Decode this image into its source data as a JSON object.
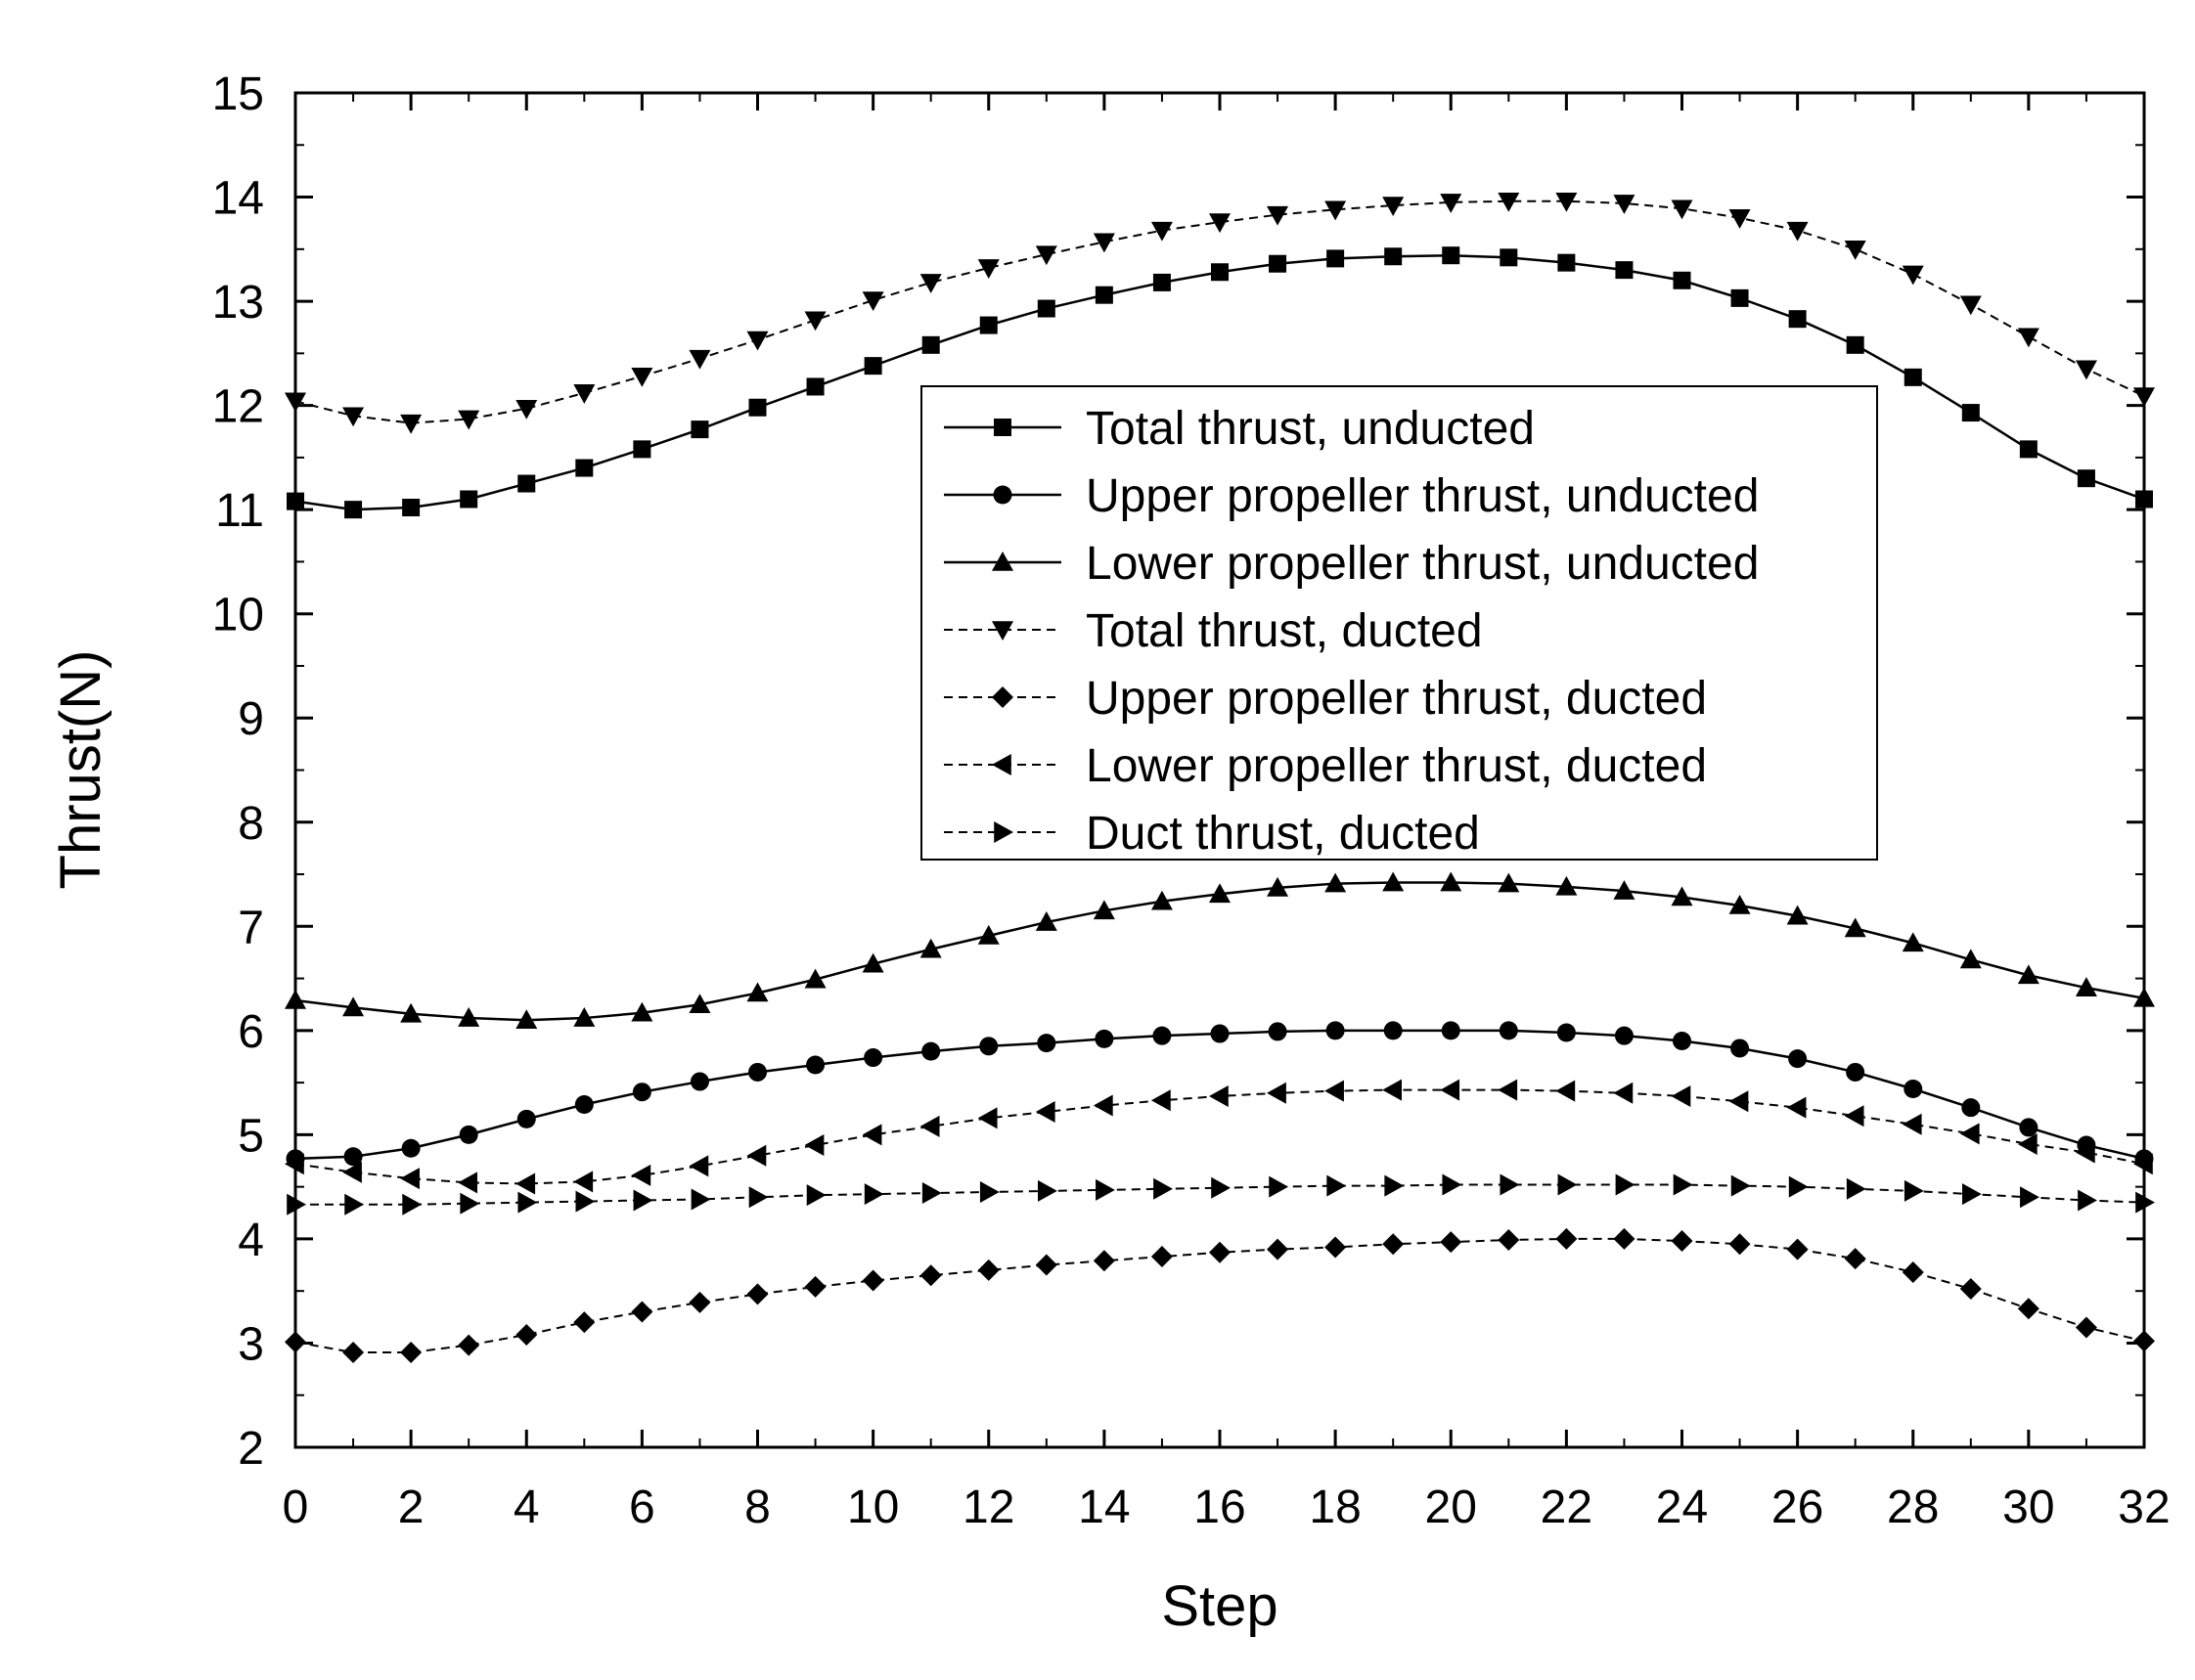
{
  "chart_data": {
    "type": "line",
    "title": "",
    "xlabel": "Step",
    "ylabel": "Thrust(N)",
    "xlim": [
      0,
      32
    ],
    "ylim": [
      2,
      15
    ],
    "xticks": [
      0,
      2,
      4,
      6,
      8,
      10,
      12,
      14,
      16,
      18,
      20,
      22,
      24,
      26,
      28,
      30,
      32
    ],
    "yticks": [
      2,
      3,
      4,
      5,
      6,
      7,
      8,
      9,
      10,
      11,
      12,
      13,
      14,
      15
    ],
    "grid": false,
    "legend_position": "top-right",
    "x": [
      0,
      1,
      2,
      3,
      4,
      5,
      6,
      7,
      8,
      9,
      10,
      11,
      12,
      13,
      14,
      15,
      16,
      17,
      18,
      19,
      20,
      21,
      22,
      23,
      24,
      25,
      26,
      27,
      28,
      29,
      30,
      31,
      32
    ],
    "series": [
      {
        "name": "Total thrust, unducted",
        "line": "solid",
        "marker": "square",
        "values": [
          11.08,
          11.0,
          11.02,
          11.1,
          11.25,
          11.4,
          11.58,
          11.77,
          11.98,
          12.18,
          12.38,
          12.58,
          12.77,
          12.93,
          13.06,
          13.18,
          13.28,
          13.36,
          13.41,
          13.43,
          13.44,
          13.42,
          13.37,
          13.3,
          13.2,
          13.03,
          12.83,
          12.58,
          12.27,
          11.93,
          11.58,
          11.3,
          11.1
        ]
      },
      {
        "name": "Upper propeller thrust, unducted",
        "line": "solid",
        "marker": "circle",
        "values": [
          4.77,
          4.79,
          4.87,
          5.0,
          5.15,
          5.29,
          5.41,
          5.51,
          5.6,
          5.67,
          5.74,
          5.8,
          5.85,
          5.88,
          5.92,
          5.95,
          5.97,
          5.99,
          6.0,
          6.0,
          6.0,
          6.0,
          5.98,
          5.95,
          5.9,
          5.83,
          5.73,
          5.6,
          5.44,
          5.26,
          5.07,
          4.9,
          4.77
        ]
      },
      {
        "name": "Lower propeller thrust, unducted",
        "line": "solid",
        "marker": "triangle-up",
        "values": [
          6.29,
          6.22,
          6.16,
          6.12,
          6.1,
          6.12,
          6.17,
          6.25,
          6.36,
          6.49,
          6.64,
          6.78,
          6.91,
          7.04,
          7.15,
          7.24,
          7.31,
          7.37,
          7.41,
          7.42,
          7.42,
          7.41,
          7.38,
          7.34,
          7.28,
          7.2,
          7.1,
          6.98,
          6.84,
          6.68,
          6.53,
          6.41,
          6.31
        ]
      },
      {
        "name": "Total thrust, ducted",
        "line": "dashed",
        "marker": "triangle-down",
        "values": [
          12.04,
          11.9,
          11.83,
          11.87,
          11.97,
          12.12,
          12.28,
          12.45,
          12.63,
          12.82,
          13.01,
          13.18,
          13.32,
          13.45,
          13.57,
          13.68,
          13.76,
          13.83,
          13.88,
          13.92,
          13.95,
          13.96,
          13.96,
          13.94,
          13.89,
          13.8,
          13.68,
          13.5,
          13.26,
          12.97,
          12.66,
          12.35,
          12.09
        ]
      },
      {
        "name": "Upper propeller thrust, ducted",
        "line": "dashed",
        "marker": "diamond",
        "values": [
          3.01,
          2.91,
          2.91,
          2.98,
          3.08,
          3.2,
          3.3,
          3.39,
          3.47,
          3.54,
          3.6,
          3.65,
          3.7,
          3.75,
          3.79,
          3.83,
          3.87,
          3.9,
          3.92,
          3.95,
          3.97,
          3.99,
          4.0,
          4.0,
          3.98,
          3.95,
          3.9,
          3.81,
          3.68,
          3.52,
          3.33,
          3.15,
          3.02
        ]
      },
      {
        "name": "Lower propeller thrust, ducted",
        "line": "dashed",
        "marker": "triangle-left",
        "values": [
          4.72,
          4.64,
          4.58,
          4.54,
          4.53,
          4.55,
          4.61,
          4.7,
          4.8,
          4.9,
          5.0,
          5.08,
          5.16,
          5.22,
          5.28,
          5.33,
          5.37,
          5.4,
          5.42,
          5.43,
          5.43,
          5.43,
          5.42,
          5.4,
          5.37,
          5.32,
          5.26,
          5.18,
          5.1,
          5.01,
          4.91,
          4.83,
          4.72
        ]
      },
      {
        "name": "Duct thrust, ducted",
        "line": "dashed",
        "marker": "triangle-right",
        "values": [
          4.33,
          4.33,
          4.33,
          4.34,
          4.35,
          4.36,
          4.37,
          4.38,
          4.4,
          4.42,
          4.43,
          4.44,
          4.45,
          4.46,
          4.47,
          4.48,
          4.49,
          4.5,
          4.51,
          4.51,
          4.52,
          4.52,
          4.52,
          4.52,
          4.52,
          4.51,
          4.5,
          4.48,
          4.46,
          4.43,
          4.4,
          4.37,
          4.35
        ]
      }
    ]
  }
}
